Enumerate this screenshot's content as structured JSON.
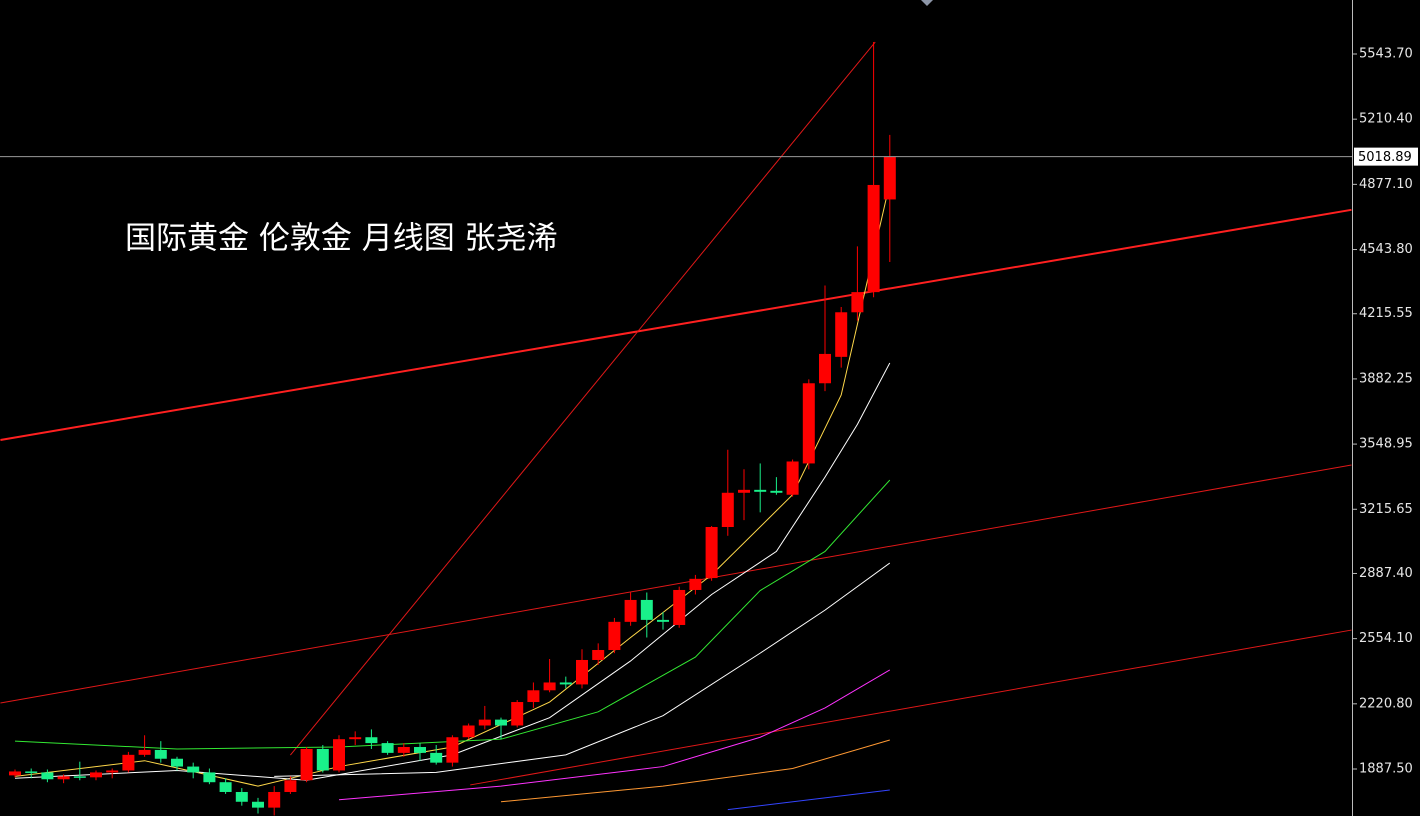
{
  "chart_data": {
    "type": "candlestick",
    "title": "国际黄金 伦敦金  月线图 张尧浠",
    "up_color": "#ff0000",
    "down_color": "#19f08a",
    "open": [
      1855,
      1875,
      1870,
      1835,
      1850,
      1845,
      1870,
      1880,
      1960,
      1985,
      1940,
      1900,
      1870,
      1820,
      1770,
      1720,
      1690,
      1770,
      1830,
      1990,
      1880,
      2040,
      2050,
      2020,
      1970,
      2000,
      1970,
      1920,
      2050,
      2110,
      2140,
      2110,
      2230,
      2290,
      2330,
      2320,
      2445,
      2496,
      2640,
      2752,
      2650,
      2624,
      2803,
      2864,
      3125,
      3300,
      3315,
      3310,
      3290,
      3450,
      3860,
      3995,
      4223,
      4326,
      4800
    ],
    "high": [
      1885,
      1890,
      1885,
      1860,
      1925,
      1880,
      1890,
      1975,
      2060,
      2030,
      1950,
      1920,
      1890,
      1840,
      1790,
      1740,
      1800,
      1850,
      2000,
      2010,
      2060,
      2080,
      2090,
      2030,
      2020,
      2020,
      2010,
      2060,
      2120,
      2210,
      2150,
      2240,
      2330,
      2450,
      2360,
      2500,
      2530,
      2660,
      2790,
      2790,
      2690,
      2820,
      2880,
      3130,
      3520,
      3420,
      3450,
      3380,
      3470,
      3880,
      4360,
      4250,
      4560,
      5605,
      5130
    ],
    "low": [
      1845,
      1840,
      1820,
      1815,
      1830,
      1830,
      1840,
      1870,
      1950,
      1920,
      1880,
      1840,
      1810,
      1760,
      1700,
      1660,
      1650,
      1760,
      1820,
      1870,
      1870,
      2010,
      1990,
      1960,
      1950,
      1930,
      1910,
      1900,
      2040,
      2090,
      2040,
      2100,
      2200,
      2280,
      2300,
      2300,
      2420,
      2480,
      2620,
      2560,
      2600,
      2610,
      2780,
      2850,
      3080,
      3160,
      3200,
      3290,
      3280,
      3420,
      3820,
      3940,
      4180,
      4300,
      4480
    ],
    "close": [
      1875,
      1870,
      1835,
      1850,
      1845,
      1870,
      1880,
      1960,
      1985,
      1940,
      1900,
      1870,
      1820,
      1770,
      1720,
      1690,
      1770,
      1830,
      1990,
      1880,
      2040,
      2050,
      2020,
      1970,
      2000,
      1970,
      1920,
      2050,
      2110,
      2140,
      2110,
      2230,
      2290,
      2330,
      2320,
      2445,
      2496,
      2640,
      2752,
      2650,
      2640,
      2803,
      2860,
      3125,
      3300,
      3315,
      3305,
      3300,
      3460,
      3860,
      4010,
      4223,
      4326,
      4874,
      5018.89
    ],
    "overlays": [
      {
        "color": "#ffd84a",
        "x": [
          0,
          8,
          15,
          20,
          27,
          33,
          38,
          43,
          48,
          51,
          54
        ],
        "values": [
          1850,
          1930,
          1800,
          1900,
          2000,
          2230,
          2560,
          2880,
          3290,
          3800,
          4884
        ]
      },
      {
        "color": "#ffffff",
        "x": [
          0,
          10,
          18,
          27,
          33,
          38,
          43,
          47,
          50,
          52,
          54
        ],
        "values": [
          1840,
          1880,
          1830,
          1960,
          2150,
          2440,
          2780,
          3000,
          3380,
          3650,
          3964
        ]
      },
      {
        "color": "#33e833",
        "x": [
          0,
          10,
          20,
          30,
          36,
          42,
          46,
          50,
          54
        ],
        "values": [
          2030,
          1990,
          2000,
          2040,
          2180,
          2460,
          2800,
          3000,
          3365
        ]
      },
      {
        "color": "#ffffff",
        "x": [
          16,
          26,
          34,
          40,
          46,
          50,
          54
        ],
        "values": [
          1850,
          1870,
          1960,
          2160,
          2480,
          2700,
          2941
        ]
      },
      {
        "color": "#ff33ff",
        "x": [
          20,
          30,
          40,
          46,
          50,
          54
        ],
        "values": [
          1730,
          1800,
          1900,
          2050,
          2200,
          2394
        ]
      },
      {
        "color": "#ff9933",
        "x": [
          30,
          40,
          48,
          54
        ],
        "values": [
          1720,
          1800,
          1890,
          2036
        ]
      },
      {
        "color": "#3344ff",
        "x": [
          44,
          54
        ],
        "values": [
          1680,
          1780
        ]
      }
    ],
    "trendlines": [
      {
        "color": "#ff2020",
        "width": 2,
        "x": [
          -0.9,
          82.5
        ],
        "values": [
          3570,
          4747
        ]
      },
      {
        "color": "#e01818",
        "width": 1,
        "x": [
          -0.9,
          82.5
        ],
        "values": [
          2225,
          3442
        ]
      },
      {
        "color": "#e01818",
        "width": 1,
        "x": [
          28.1,
          82.5
        ],
        "values": [
          1806,
          2598
        ]
      },
      {
        "color": "#e01818",
        "width": 1,
        "x": [
          17,
          53.1
        ],
        "values": [
          1959,
          5605
        ]
      }
    ],
    "last_price": 5018.89,
    "ylim": [
      1647.2,
      5819.8
    ],
    "yticks": [
      {
        "value": 5543.7,
        "label": "5543.70"
      },
      {
        "value": 5210.4,
        "label": "5210.40"
      },
      {
        "value": 4877.1,
        "label": "4877.10"
      },
      {
        "value": 4543.8,
        "label": "4543.80"
      },
      {
        "value": 4215.55,
        "label": "4215.55"
      },
      {
        "value": 3882.25,
        "label": "3882.25"
      },
      {
        "value": 3548.95,
        "label": "3548.95"
      },
      {
        "value": 3215.65,
        "label": "3215.65"
      },
      {
        "value": 2887.4,
        "label": "2887.40"
      },
      {
        "value": 2554.1,
        "label": "2554.10"
      },
      {
        "value": 2220.8,
        "label": "2220.80"
      },
      {
        "value": 1887.5,
        "label": "1887.50"
      }
    ]
  }
}
